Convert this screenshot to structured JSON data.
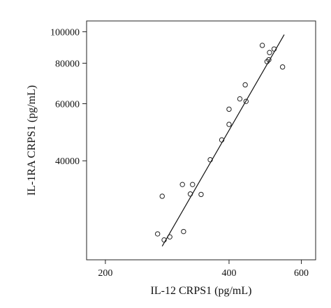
{
  "chart_data": {
    "type": "scatter",
    "title": "",
    "xlabel": "IL-12 CRPS1 (pg/mL)",
    "ylabel": "IL-1RA CRPS1 (pg/mL)",
    "x_scale": "log",
    "y_scale": "log",
    "xlim": [
      180,
      650
    ],
    "ylim": [
      19800,
      108000
    ],
    "x_ticks": [
      200,
      400,
      600
    ],
    "x_tick_labels": [
      "200",
      "400",
      "600"
    ],
    "y_ticks": [
      40000,
      60000,
      80000,
      100000
    ],
    "y_tick_labels": [
      "40000",
      "60000",
      "80000",
      "100000"
    ],
    "grid": false,
    "legend": "none",
    "points": [
      {
        "x": 268,
        "y": 23800
      },
      {
        "x": 278,
        "y": 22800
      },
      {
        "x": 287,
        "y": 23300
      },
      {
        "x": 275,
        "y": 31100
      },
      {
        "x": 310,
        "y": 24200
      },
      {
        "x": 308,
        "y": 33800
      },
      {
        "x": 322,
        "y": 31600
      },
      {
        "x": 326,
        "y": 33800
      },
      {
        "x": 342,
        "y": 31500
      },
      {
        "x": 360,
        "y": 40300
      },
      {
        "x": 384,
        "y": 46400
      },
      {
        "x": 400,
        "y": 51800
      },
      {
        "x": 400,
        "y": 57700
      },
      {
        "x": 425,
        "y": 62100
      },
      {
        "x": 440,
        "y": 61000
      },
      {
        "x": 438,
        "y": 68600
      },
      {
        "x": 482,
        "y": 90800
      },
      {
        "x": 495,
        "y": 80900
      },
      {
        "x": 500,
        "y": 82000
      },
      {
        "x": 502,
        "y": 86300
      },
      {
        "x": 515,
        "y": 88500
      },
      {
        "x": 540,
        "y": 77900
      }
    ],
    "fit_line": {
      "x": [
        275,
        545
      ],
      "y": [
        21800,
        98000
      ]
    }
  }
}
